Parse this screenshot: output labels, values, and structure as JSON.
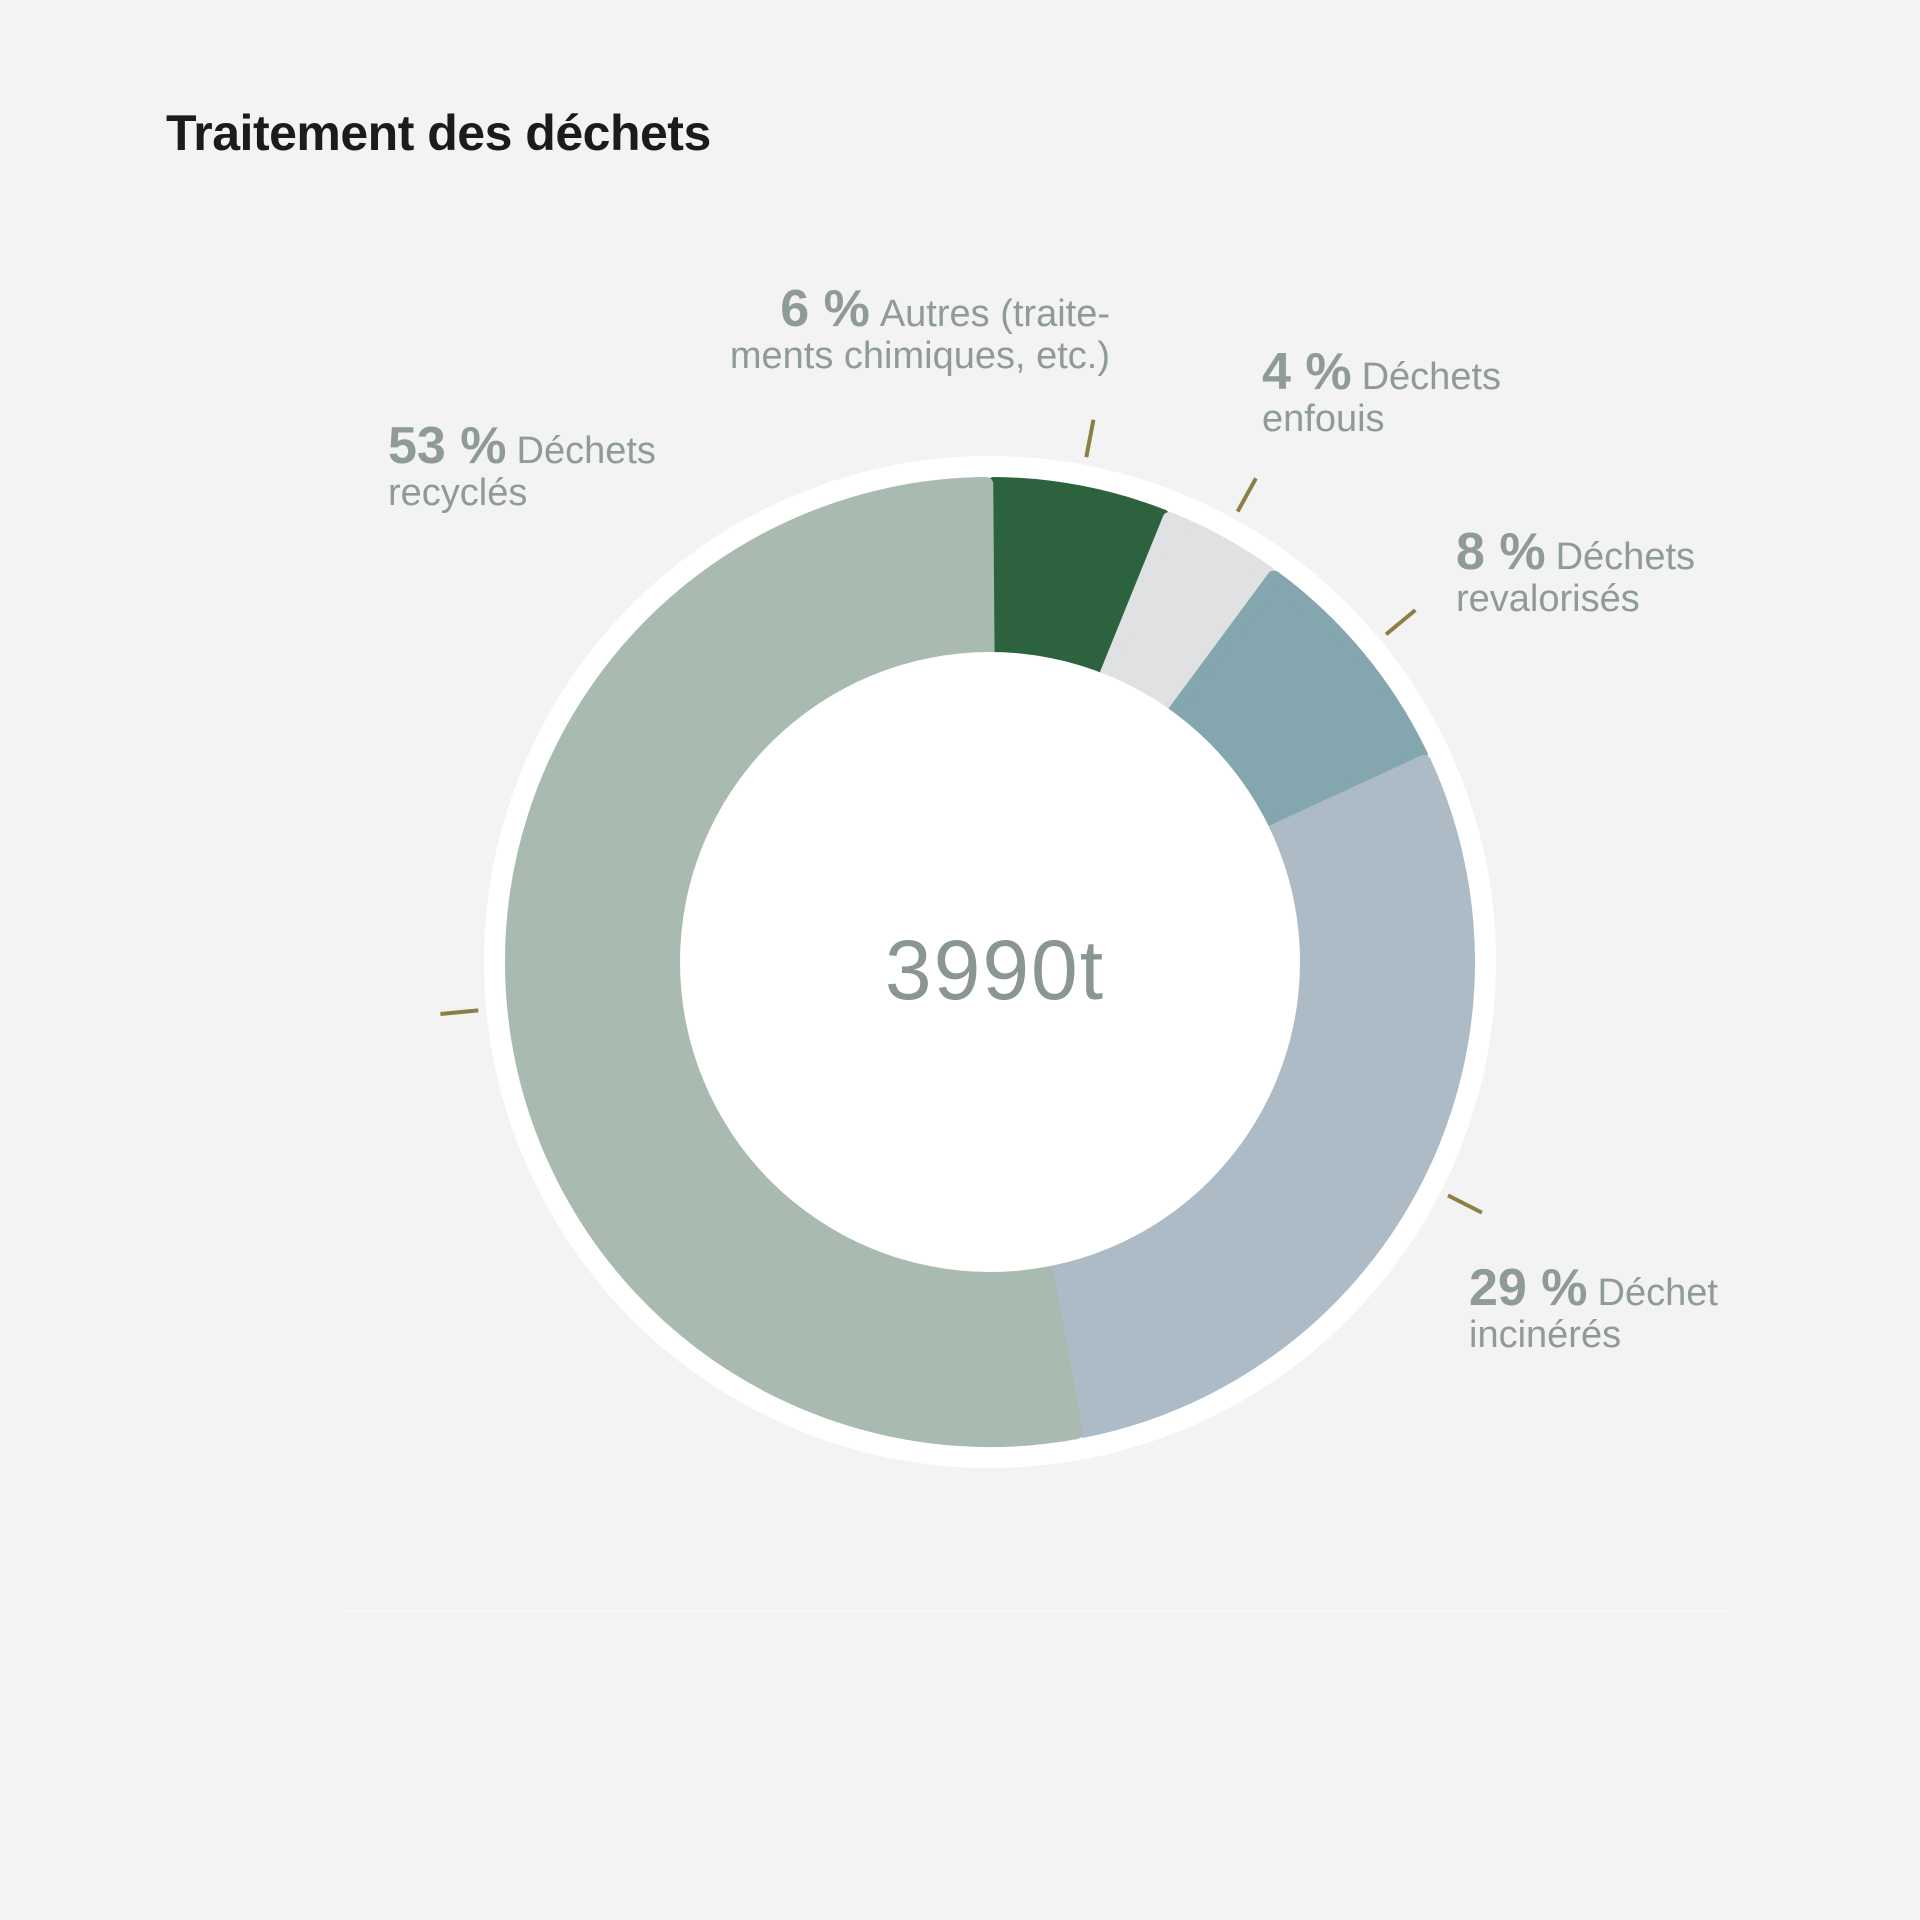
{
  "chart_data": {
    "type": "pie",
    "title": "Traitement des déchets",
    "center_label": "3990t",
    "slices": [
      {
        "pct_label": "6 %",
        "value": 6,
        "label": "Autres (traite-",
        "label_line2": "ments chimiques, etc.)",
        "color": "#2c623e"
      },
      {
        "pct_label": "4 %",
        "value": 4,
        "label": "Déchets",
        "label_line2": "enfouis",
        "color": "#dfe1e3"
      },
      {
        "pct_label": "8 %",
        "value": 8,
        "label": "Déchets",
        "label_line2": "revalorisés",
        "color": "#84a6ae"
      },
      {
        "pct_label": "29 %",
        "value": 29,
        "label": "Déchet",
        "label_line2": "incinérés",
        "color": "#adbbc6"
      },
      {
        "pct_label": "53 %",
        "value": 53,
        "label": "Déchets",
        "label_line2": "recyclés",
        "color": "#a9bbb1"
      }
    ],
    "leader_color": "#8b7f47"
  }
}
